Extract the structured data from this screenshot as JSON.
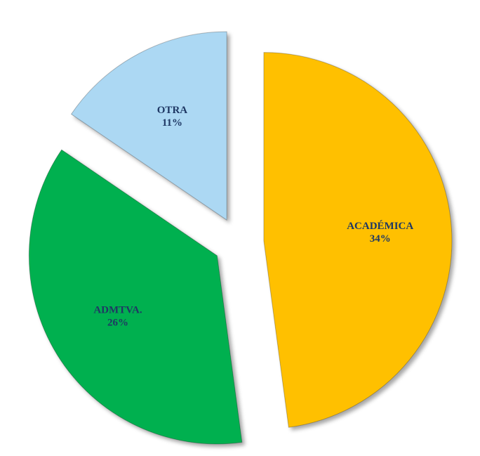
{
  "chart_data": {
    "type": "pie",
    "categories": [
      "ACADÉMICA",
      "ADMTVA.",
      "OTRA"
    ],
    "values": [
      34,
      26,
      11
    ],
    "value_labels": [
      "34%",
      "26%",
      "11%"
    ],
    "colors": [
      "#ffc000",
      "#00b050",
      "#acd8f3"
    ]
  }
}
